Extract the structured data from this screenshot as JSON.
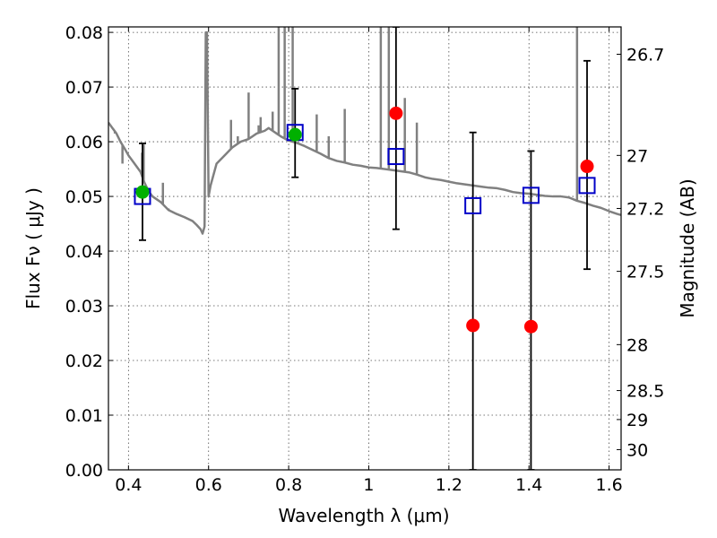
{
  "chart_data": {
    "type": "scatter",
    "xlabel": "Wavelength  λ (μm)",
    "ylabel": "Flux  Fν  ( μJy )",
    "ylabel_right": "Magnitude (AB)",
    "xlim": [
      0.35,
      1.63
    ],
    "ylim": [
      0.0,
      0.081
    ],
    "grid": true,
    "x_ticks": [
      {
        "value": 0.4,
        "label": "0.4"
      },
      {
        "value": 0.6,
        "label": "0.6"
      },
      {
        "value": 0.8,
        "label": "0.8"
      },
      {
        "value": 1.0,
        "label": "1"
      },
      {
        "value": 1.2,
        "label": "1.2"
      },
      {
        "value": 1.4,
        "label": "1.4"
      },
      {
        "value": 1.6,
        "label": "1.6"
      }
    ],
    "y_ticks": [
      {
        "value": 0.0,
        "label": "0.00"
      },
      {
        "value": 0.01,
        "label": "0.01"
      },
      {
        "value": 0.02,
        "label": "0.02"
      },
      {
        "value": 0.03,
        "label": "0.03"
      },
      {
        "value": 0.04,
        "label": "0.04"
      },
      {
        "value": 0.05,
        "label": "0.05"
      },
      {
        "value": 0.06,
        "label": "0.06"
      },
      {
        "value": 0.07,
        "label": "0.07"
      },
      {
        "value": 0.08,
        "label": "0.08"
      }
    ],
    "right_ticks": [
      {
        "flux": 0.076,
        "label": "26.7"
      },
      {
        "flux": 0.0575,
        "label": "27"
      },
      {
        "flux": 0.0478,
        "label": "27.2"
      },
      {
        "flux": 0.0363,
        "label": "27.5"
      },
      {
        "flux": 0.0229,
        "label": "28"
      },
      {
        "flux": 0.0145,
        "label": "28.5"
      },
      {
        "flux": 0.0092,
        "label": "29"
      },
      {
        "flux": 0.0037,
        "label": "30"
      }
    ],
    "series": [
      {
        "kind": "line",
        "color": "#808080",
        "points": [
          [
            0.35,
            0.0635
          ],
          [
            0.36,
            0.0625
          ],
          [
            0.37,
            0.0615
          ],
          [
            0.38,
            0.06
          ],
          [
            0.39,
            0.0588
          ],
          [
            0.4,
            0.0575
          ],
          [
            0.41,
            0.0565
          ],
          [
            0.42,
            0.0555
          ],
          [
            0.43,
            0.0545
          ],
          [
            0.44,
            0.0525
          ],
          [
            0.45,
            0.051
          ],
          [
            0.46,
            0.05
          ],
          [
            0.48,
            0.049
          ],
          [
            0.5,
            0.0475
          ],
          [
            0.52,
            0.0468
          ],
          [
            0.54,
            0.0462
          ],
          [
            0.56,
            0.0455
          ],
          [
            0.57,
            0.0448
          ],
          [
            0.58,
            0.044
          ],
          [
            0.585,
            0.0432
          ],
          [
            0.59,
            0.0445
          ],
          [
            0.593,
            0.08
          ],
          [
            0.596,
            0.08
          ],
          [
            0.6,
            0.05
          ],
          [
            0.605,
            0.052
          ],
          [
            0.62,
            0.056
          ],
          [
            0.64,
            0.0575
          ],
          [
            0.66,
            0.059
          ],
          [
            0.68,
            0.06
          ],
          [
            0.7,
            0.0605
          ],
          [
            0.72,
            0.0615
          ],
          [
            0.74,
            0.062
          ],
          [
            0.75,
            0.0625
          ],
          [
            0.76,
            0.062
          ],
          [
            0.77,
            0.0615
          ],
          [
            0.78,
            0.061
          ],
          [
            0.8,
            0.0602
          ],
          [
            0.82,
            0.0598
          ],
          [
            0.84,
            0.0592
          ],
          [
            0.86,
            0.0585
          ],
          [
            0.88,
            0.0578
          ],
          [
            0.9,
            0.057
          ],
          [
            0.92,
            0.0565
          ],
          [
            0.94,
            0.0562
          ],
          [
            0.96,
            0.0558
          ],
          [
            0.98,
            0.0556
          ],
          [
            1.0,
            0.0553
          ],
          [
            1.02,
            0.0552
          ],
          [
            1.04,
            0.055
          ],
          [
            1.06,
            0.0548
          ],
          [
            1.08,
            0.0546
          ],
          [
            1.1,
            0.0544
          ],
          [
            1.12,
            0.054
          ],
          [
            1.14,
            0.0535
          ],
          [
            1.16,
            0.0532
          ],
          [
            1.18,
            0.053
          ],
          [
            1.2,
            0.0527
          ],
          [
            1.22,
            0.0524
          ],
          [
            1.24,
            0.0522
          ],
          [
            1.26,
            0.052
          ],
          [
            1.28,
            0.0518
          ],
          [
            1.3,
            0.0516
          ],
          [
            1.32,
            0.0515
          ],
          [
            1.34,
            0.0512
          ],
          [
            1.36,
            0.0508
          ],
          [
            1.38,
            0.0506
          ],
          [
            1.4,
            0.0505
          ],
          [
            1.42,
            0.0503
          ],
          [
            1.44,
            0.0501
          ],
          [
            1.46,
            0.05
          ],
          [
            1.48,
            0.05
          ],
          [
            1.5,
            0.0498
          ],
          [
            1.52,
            0.0492
          ],
          [
            1.54,
            0.0488
          ],
          [
            1.56,
            0.0483
          ],
          [
            1.58,
            0.0479
          ],
          [
            1.6,
            0.0473
          ],
          [
            1.62,
            0.0468
          ],
          [
            1.63,
            0.0466
          ]
        ],
        "spikes": [
          [
            0.366,
            0.0615
          ],
          [
            0.373,
            0.061
          ],
          [
            0.385,
            0.056
          ],
          [
            0.434,
            0.058
          ],
          [
            0.438,
            0.0595
          ],
          [
            0.486,
            0.0525
          ],
          [
            0.5,
            0.0478
          ],
          [
            0.656,
            0.064
          ],
          [
            0.673,
            0.061
          ],
          [
            0.7,
            0.069
          ],
          [
            0.725,
            0.063
          ],
          [
            0.73,
            0.0645
          ],
          [
            0.76,
            0.0655
          ],
          [
            0.775,
            0.081
          ],
          [
            0.79,
            0.081
          ],
          [
            0.81,
            0.081
          ],
          [
            0.87,
            0.065
          ],
          [
            0.9,
            0.061
          ],
          [
            0.94,
            0.066
          ],
          [
            1.03,
            0.081
          ],
          [
            1.05,
            0.081
          ],
          [
            1.09,
            0.068
          ],
          [
            1.12,
            0.0635
          ],
          [
            1.52,
            0.081
          ]
        ]
      },
      {
        "kind": "errorbar",
        "color": "#000000",
        "points": [
          {
            "x": 0.435,
            "ylo": 0.042,
            "yhi": 0.0597
          },
          {
            "x": 0.816,
            "ylo": 0.0535,
            "yhi": 0.0697
          },
          {
            "x": 1.068,
            "ylo": 0.044,
            "yhi": 0.081
          },
          {
            "x": 1.26,
            "ylo": 0.0,
            "yhi": 0.0617
          },
          {
            "x": 1.405,
            "ylo": 0.0,
            "yhi": 0.0583
          },
          {
            "x": 1.545,
            "ylo": 0.0367,
            "yhi": 0.0748
          }
        ]
      },
      {
        "kind": "square",
        "color": "#0000c8",
        "points": [
          [
            0.435,
            0.05
          ],
          [
            0.816,
            0.0617
          ],
          [
            1.068,
            0.0573
          ],
          [
            1.26,
            0.0483
          ],
          [
            1.405,
            0.0502
          ],
          [
            1.545,
            0.052
          ]
        ]
      },
      {
        "kind": "circle",
        "color": "#ff0000",
        "points": [
          [
            1.068,
            0.0652
          ],
          [
            1.26,
            0.0264
          ],
          [
            1.405,
            0.0262
          ],
          [
            1.545,
            0.0555
          ]
        ]
      },
      {
        "kind": "circle",
        "color": "#00b000",
        "points": [
          [
            0.435,
            0.0508
          ],
          [
            0.816,
            0.0613
          ]
        ]
      }
    ]
  }
}
